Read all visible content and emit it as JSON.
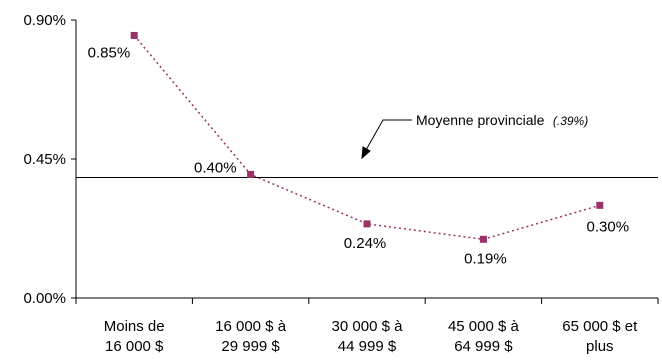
{
  "chart_data": {
    "type": "line",
    "categories": [
      [
        "Moins de",
        "16 000 $"
      ],
      [
        "16 000 $ à",
        "29 999 $"
      ],
      [
        "30 000 $  à",
        "44 999 $"
      ],
      [
        "45 000 $  à",
        "64 999 $"
      ],
      [
        "65 000 $     et",
        "plus"
      ]
    ],
    "series": [
      {
        "values": [
          0.85,
          0.4,
          0.24,
          0.19,
          0.3
        ],
        "labels": [
          "0.85%",
          "0.40%",
          "0.24%",
          "0.19%",
          "0.30%"
        ],
        "color": "#993366",
        "line_style": "dotted",
        "marker": "square"
      }
    ],
    "ylim": [
      0,
      0.9
    ],
    "yticks": [
      0,
      0.45,
      0.9
    ],
    "ytick_labels": [
      "0.00%",
      "0.45%",
      "0.90%"
    ],
    "reference_line": {
      "value": 0.39,
      "label": "Moyenne provinciale",
      "label_suffix": "(.39%)",
      "color": "#000000"
    },
    "grid": false,
    "legend": "none",
    "title": "",
    "xlabel": "",
    "ylabel": ""
  }
}
